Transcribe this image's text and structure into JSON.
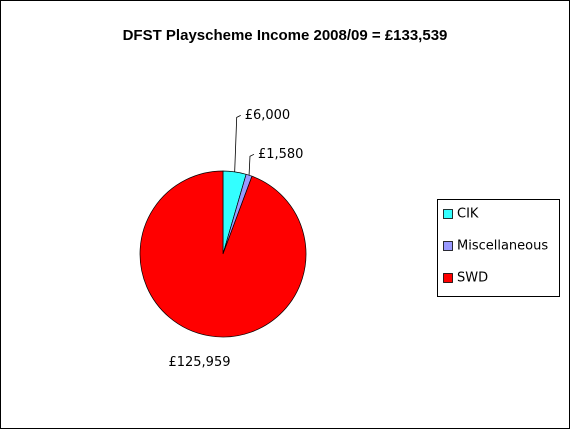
{
  "chart_data": {
    "type": "pie",
    "title": "DFST Playscheme Income 2008/09 = £133,539",
    "categories": [
      "CIK",
      "Miscellaneous",
      "SWD"
    ],
    "values": [
      6000,
      1580,
      125959
    ],
    "value_labels": [
      "£6,000",
      "£1,580",
      "£125,959"
    ],
    "colors": [
      "#33ffff",
      "#9999ff",
      "#ff0000"
    ],
    "legend": "right"
  }
}
